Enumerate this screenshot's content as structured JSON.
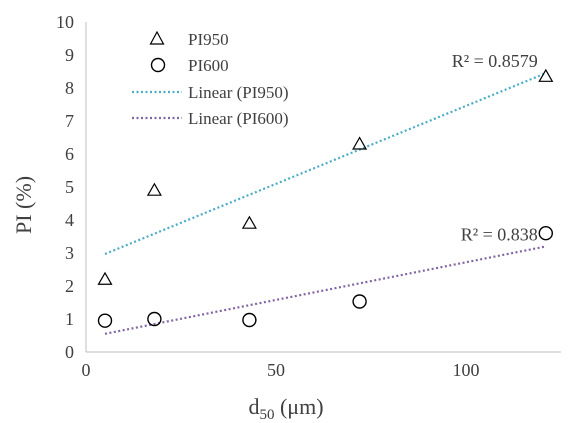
{
  "chart_data": {
    "type": "scatter",
    "xlabel": {
      "main": "d",
      "sub": "50",
      "unit": " (μm)"
    },
    "ylabel": "PI (%)",
    "xlim": [
      0,
      125
    ],
    "ylim": [
      0,
      10
    ],
    "x_ticks": [
      "0",
      "50",
      "100"
    ],
    "y_ticks": [
      "0",
      "1",
      "2",
      "3",
      "4",
      "5",
      "6",
      "7",
      "8",
      "9",
      "10"
    ],
    "grid": false,
    "legend_position": "top-left",
    "series": [
      {
        "name": "PI950",
        "marker": "triangle",
        "color": "#000000",
        "points": [
          {
            "x": 5,
            "y": 2.2
          },
          {
            "x": 18,
            "y": 4.9
          },
          {
            "x": 43,
            "y": 3.9
          },
          {
            "x": 72,
            "y": 6.3
          },
          {
            "x": 121,
            "y": 8.35
          }
        ]
      },
      {
        "name": "PI600",
        "marker": "circle",
        "color": "#000000",
        "points": [
          {
            "x": 5,
            "y": 0.95
          },
          {
            "x": 18,
            "y": 1.0
          },
          {
            "x": 43,
            "y": 0.97
          },
          {
            "x": 72,
            "y": 1.53
          },
          {
            "x": 121,
            "y": 3.6
          }
        ]
      }
    ],
    "trendlines": [
      {
        "name": "Linear (PI950)",
        "color": "#4BACC6",
        "x_range": [
          5,
          121
        ],
        "y_range": [
          2.97,
          8.45
        ],
        "r2_label": "R² = 0.8579"
      },
      {
        "name": "Linear (PI600)",
        "color": "#8064A2",
        "x_range": [
          5,
          121
        ],
        "y_range": [
          0.55,
          3.2
        ],
        "r2_label": "R² = 0.838"
      }
    ]
  }
}
